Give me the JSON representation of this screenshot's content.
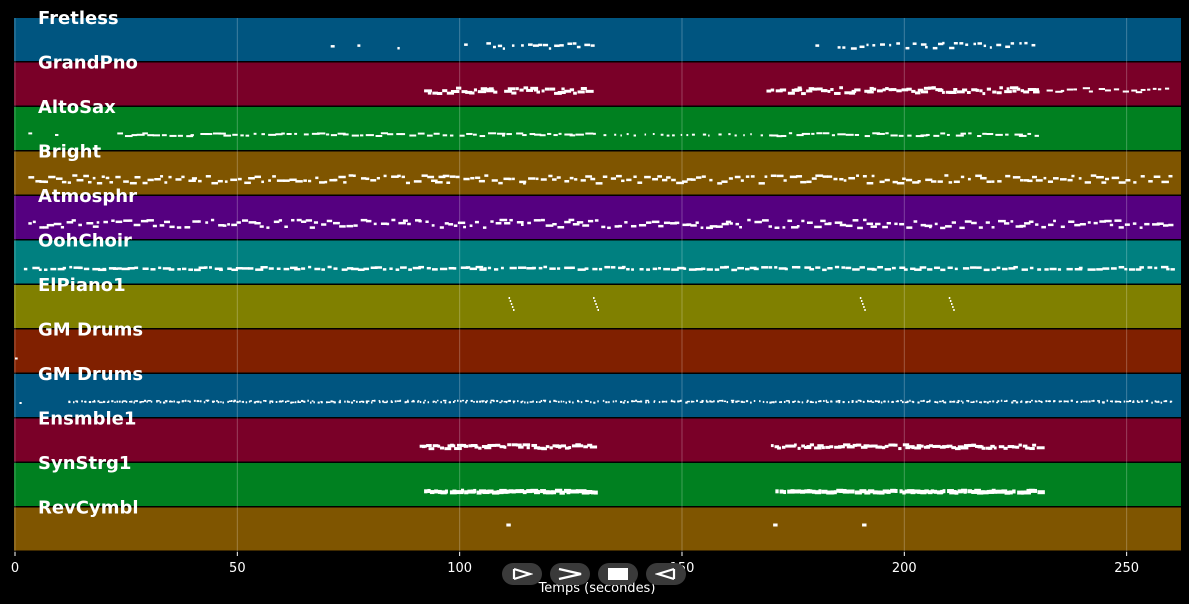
{
  "tracks": [
    {
      "name": "Fretless",
      "color": "#005580",
      "pattern": "fretless"
    },
    {
      "name": "GrandPno",
      "color": "#7a0028",
      "pattern": "piano"
    },
    {
      "name": "AltoSax",
      "color": "#008020",
      "pattern": "sax"
    },
    {
      "name": "Bright",
      "color": "#7f5500",
      "pattern": "dense2"
    },
    {
      "name": "Atmosphr",
      "color": "#550080",
      "pattern": "dense2"
    },
    {
      "name": "OohChoir",
      "color": "#008080",
      "pattern": "dense1"
    },
    {
      "name": "ElPiano1",
      "color": "#808000",
      "pattern": "epiano"
    },
    {
      "name": "GM Drums",
      "color": "#802000",
      "pattern": "drums1"
    },
    {
      "name": "GM Drums",
      "color": "#005580",
      "pattern": "drums2"
    },
    {
      "name": "Ensmble1",
      "color": "#7a0028",
      "pattern": "ensemble"
    },
    {
      "name": "SynStrg1",
      "color": "#008020",
      "pattern": "strings"
    },
    {
      "name": "RevCymbl",
      "color": "#7f5500",
      "pattern": "cymbal"
    }
  ],
  "x_axis": {
    "title": "Temps (secondes)",
    "min": 0,
    "max": 262,
    "ticks": [
      0,
      50,
      100,
      150,
      200,
      250
    ]
  },
  "transport": {
    "play_icon": "play-outline-icon",
    "forward_icon": "fast-forward-icon",
    "stop_icon": "stop-icon",
    "rewind_icon": "rewind-icon"
  }
}
